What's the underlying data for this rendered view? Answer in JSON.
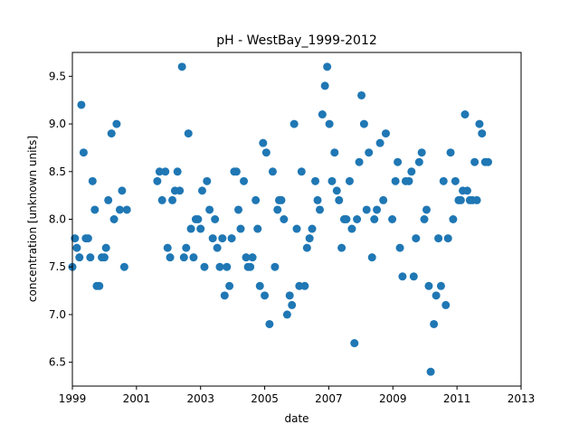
{
  "chart_data": {
    "type": "scatter",
    "title": "pH - WestBay_1999-2012",
    "xlabel": "date",
    "ylabel": "concentration [unknown units]",
    "xlim": [
      1999.0,
      2013.0
    ],
    "ylim": [
      6.25,
      9.75
    ],
    "x_ticks": [
      1999,
      2001,
      2003,
      2005,
      2007,
      2009,
      2011,
      2013
    ],
    "x_tick_labels": [
      "1999",
      "2001",
      "2003",
      "2005",
      "2007",
      "2009",
      "2011",
      "2013"
    ],
    "y_ticks": [
      6.5,
      7.0,
      7.5,
      8.0,
      8.5,
      9.0,
      9.5
    ],
    "y_tick_labels": [
      "6.5",
      "7.0",
      "7.5",
      "8.0",
      "8.5",
      "9.0",
      "9.5"
    ],
    "grid": false,
    "marker_color": "#1f77b4",
    "points": [
      [
        1999.0,
        7.5
      ],
      [
        1999.08,
        7.8
      ],
      [
        1999.14,
        7.7
      ],
      [
        1999.22,
        7.6
      ],
      [
        1999.28,
        9.2
      ],
      [
        1999.35,
        8.7
      ],
      [
        1999.42,
        7.8
      ],
      [
        1999.49,
        7.8
      ],
      [
        1999.56,
        7.6
      ],
      [
        1999.63,
        8.4
      ],
      [
        1999.7,
        8.1
      ],
      [
        1999.76,
        7.3
      ],
      [
        1999.84,
        7.3
      ],
      [
        1999.92,
        7.6
      ],
      [
        2000.0,
        7.6
      ],
      [
        2000.05,
        7.7
      ],
      [
        2000.12,
        8.2
      ],
      [
        2000.22,
        8.9
      ],
      [
        2000.3,
        8.0
      ],
      [
        2000.38,
        9.0
      ],
      [
        2000.48,
        8.1
      ],
      [
        2000.55,
        8.3
      ],
      [
        2000.62,
        7.5
      ],
      [
        2000.7,
        8.1
      ],
      [
        2001.65,
        8.4
      ],
      [
        2001.72,
        8.5
      ],
      [
        2001.8,
        8.2
      ],
      [
        2001.9,
        8.5
      ],
      [
        2001.97,
        7.7
      ],
      [
        2002.05,
        7.6
      ],
      [
        2002.12,
        8.2
      ],
      [
        2002.2,
        8.3
      ],
      [
        2002.28,
        8.5
      ],
      [
        2002.35,
        8.3
      ],
      [
        2002.42,
        9.6
      ],
      [
        2002.48,
        7.6
      ],
      [
        2002.55,
        7.7
      ],
      [
        2002.62,
        8.9
      ],
      [
        2002.7,
        7.9
      ],
      [
        2002.78,
        7.6
      ],
      [
        2002.85,
        8.0
      ],
      [
        2002.92,
        8.0
      ],
      [
        2003.0,
        7.9
      ],
      [
        2003.05,
        8.3
      ],
      [
        2003.12,
        7.5
      ],
      [
        2003.2,
        8.4
      ],
      [
        2003.28,
        8.1
      ],
      [
        2003.38,
        7.8
      ],
      [
        2003.45,
        8.0
      ],
      [
        2003.52,
        7.7
      ],
      [
        2003.6,
        7.5
      ],
      [
        2003.68,
        7.8
      ],
      [
        2003.75,
        7.2
      ],
      [
        2003.82,
        7.5
      ],
      [
        2003.9,
        7.3
      ],
      [
        2003.97,
        7.8
      ],
      [
        2004.05,
        8.5
      ],
      [
        2004.12,
        8.5
      ],
      [
        2004.18,
        8.1
      ],
      [
        2004.25,
        7.9
      ],
      [
        2004.35,
        8.4
      ],
      [
        2004.42,
        7.6
      ],
      [
        2004.48,
        7.5
      ],
      [
        2004.55,
        7.5
      ],
      [
        2004.62,
        7.6
      ],
      [
        2004.72,
        8.2
      ],
      [
        2004.78,
        7.9
      ],
      [
        2004.85,
        7.3
      ],
      [
        2004.95,
        8.8
      ],
      [
        2005.0,
        7.2
      ],
      [
        2005.05,
        8.7
      ],
      [
        2005.15,
        6.9
      ],
      [
        2005.25,
        8.5
      ],
      [
        2005.32,
        7.5
      ],
      [
        2005.4,
        8.1
      ],
      [
        2005.45,
        8.2
      ],
      [
        2005.52,
        8.2
      ],
      [
        2005.6,
        8.0
      ],
      [
        2005.7,
        7.0
      ],
      [
        2005.78,
        7.2
      ],
      [
        2005.85,
        7.1
      ],
      [
        2005.92,
        9.0
      ],
      [
        2006.0,
        7.9
      ],
      [
        2006.08,
        7.3
      ],
      [
        2006.15,
        8.5
      ],
      [
        2006.25,
        7.3
      ],
      [
        2006.32,
        7.7
      ],
      [
        2006.4,
        7.8
      ],
      [
        2006.48,
        7.9
      ],
      [
        2006.58,
        8.4
      ],
      [
        2006.65,
        8.2
      ],
      [
        2006.72,
        8.1
      ],
      [
        2006.8,
        9.1
      ],
      [
        2006.88,
        9.4
      ],
      [
        2006.95,
        9.6
      ],
      [
        2007.02,
        9.0
      ],
      [
        2007.1,
        8.4
      ],
      [
        2007.18,
        8.7
      ],
      [
        2007.25,
        8.3
      ],
      [
        2007.32,
        8.2
      ],
      [
        2007.4,
        7.7
      ],
      [
        2007.48,
        8.0
      ],
      [
        2007.55,
        8.0
      ],
      [
        2007.65,
        8.4
      ],
      [
        2007.72,
        7.9
      ],
      [
        2007.8,
        6.7
      ],
      [
        2007.88,
        8.0
      ],
      [
        2007.95,
        8.6
      ],
      [
        2008.02,
        9.3
      ],
      [
        2008.1,
        9.0
      ],
      [
        2008.18,
        8.1
      ],
      [
        2008.25,
        8.7
      ],
      [
        2008.35,
        7.6
      ],
      [
        2008.42,
        8.0
      ],
      [
        2008.5,
        8.1
      ],
      [
        2008.6,
        8.8
      ],
      [
        2008.7,
        8.2
      ],
      [
        2008.78,
        8.9
      ],
      [
        2008.98,
        8.0
      ],
      [
        2009.08,
        8.4
      ],
      [
        2009.15,
        8.6
      ],
      [
        2009.22,
        7.7
      ],
      [
        2009.3,
        7.4
      ],
      [
        2009.4,
        8.4
      ],
      [
        2009.5,
        8.4
      ],
      [
        2009.58,
        8.5
      ],
      [
        2009.65,
        7.4
      ],
      [
        2009.72,
        7.8
      ],
      [
        2009.82,
        8.6
      ],
      [
        2009.9,
        8.7
      ],
      [
        2009.98,
        8.0
      ],
      [
        2010.05,
        8.1
      ],
      [
        2010.12,
        7.3
      ],
      [
        2010.18,
        6.4
      ],
      [
        2010.28,
        6.9
      ],
      [
        2010.35,
        7.2
      ],
      [
        2010.42,
        7.8
      ],
      [
        2010.5,
        7.3
      ],
      [
        2010.58,
        8.4
      ],
      [
        2010.65,
        7.1
      ],
      [
        2010.72,
        7.8
      ],
      [
        2010.8,
        8.7
      ],
      [
        2010.88,
        8.0
      ],
      [
        2010.95,
        8.4
      ],
      [
        2011.05,
        8.2
      ],
      [
        2011.12,
        8.2
      ],
      [
        2011.18,
        8.3
      ],
      [
        2011.25,
        9.1
      ],
      [
        2011.32,
        8.3
      ],
      [
        2011.4,
        8.2
      ],
      [
        2011.48,
        8.2
      ],
      [
        2011.55,
        8.6
      ],
      [
        2011.62,
        8.2
      ],
      [
        2011.7,
        9.0
      ],
      [
        2011.78,
        8.9
      ],
      [
        2011.88,
        8.6
      ],
      [
        2011.97,
        8.6
      ]
    ]
  }
}
